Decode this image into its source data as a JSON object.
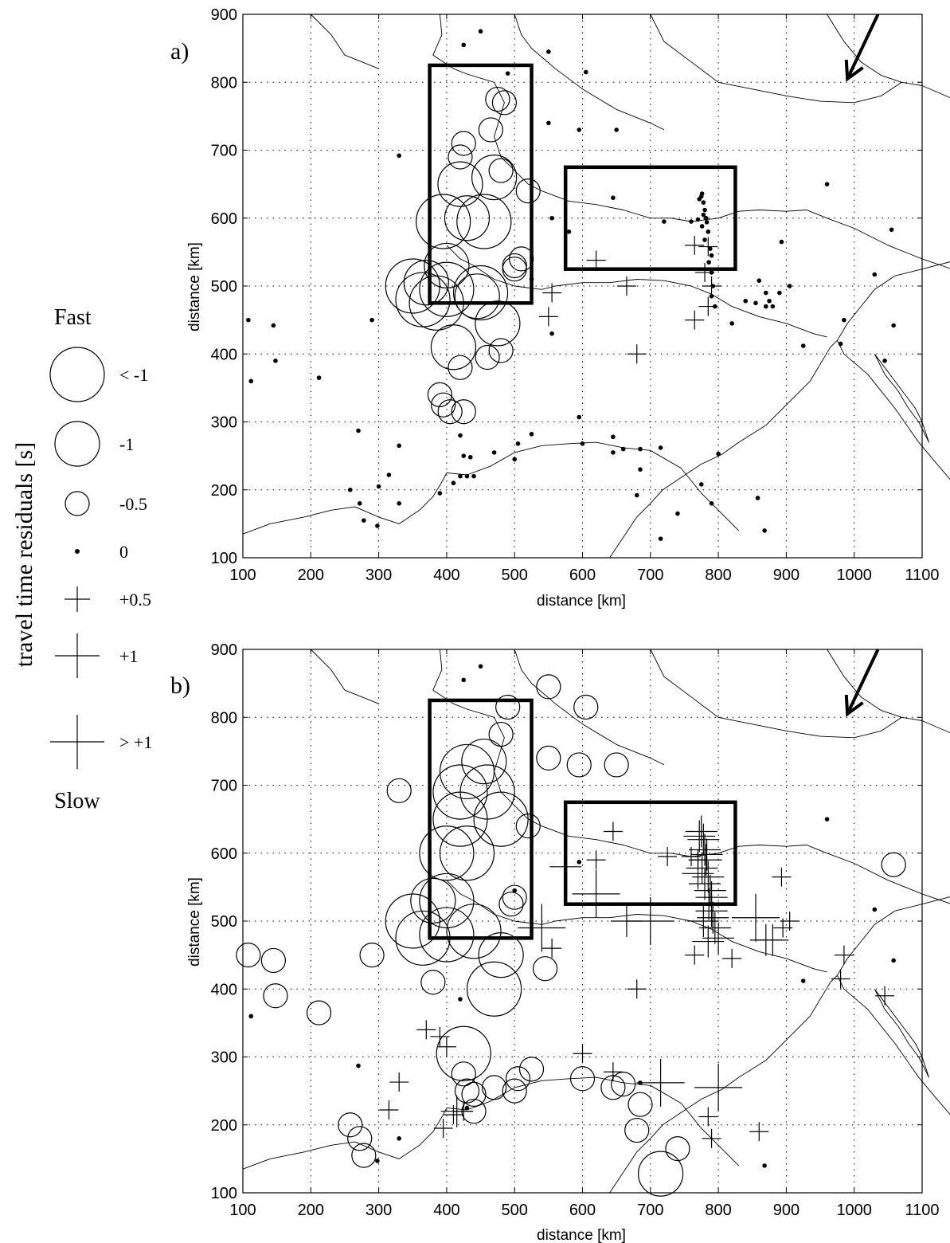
{
  "legend": {
    "title": "travel time residuals [s]",
    "top_label": "Fast",
    "bottom_label": "Slow",
    "items": [
      {
        "symbol": "circle",
        "size": 1.5,
        "label": "< -1"
      },
      {
        "symbol": "circle",
        "size": 1.0,
        "label": "-1"
      },
      {
        "symbol": "circle",
        "size": 0.5,
        "label": "-0.5"
      },
      {
        "symbol": "dot",
        "size": 0,
        "label": "0"
      },
      {
        "symbol": "cross",
        "size": 0.5,
        "label": "+0.5"
      },
      {
        "symbol": "cross",
        "size": 1.0,
        "label": "+1"
      },
      {
        "symbol": "cross",
        "size": 1.5,
        "label": "> +1"
      }
    ]
  },
  "chart_data": [
    {
      "type": "scatter",
      "panel_label": "a)",
      "xlabel": "distance [km]",
      "ylabel": "distance [km]",
      "xlim": [
        100,
        1100
      ],
      "ylim": [
        100,
        900
      ],
      "xticks": [
        "100",
        "200",
        "300",
        "400",
        "500",
        "600",
        "700",
        "800",
        "900",
        "1000",
        "1100"
      ],
      "yticks": [
        "100",
        "200",
        "300",
        "400",
        "500",
        "600",
        "700",
        "800",
        "900"
      ],
      "grid": true,
      "boxes": [
        {
          "x1": 375,
          "x2": 525,
          "y1": 475,
          "y2": 825
        },
        {
          "x1": 575,
          "x2": 825,
          "y1": 525,
          "y2": 675
        }
      ],
      "arrow": {
        "from": [
          1035,
          900
        ],
        "to": [
          990,
          805
        ]
      },
      "points": [
        [
          350,
          500,
          -1.5
        ],
        [
          365,
          480,
          -1.5
        ],
        [
          385,
          475,
          -1.5
        ],
        [
          400,
          495,
          -1.5
        ],
        [
          450,
          490,
          -1.5
        ],
        [
          395,
          595,
          -1.5
        ],
        [
          455,
          595,
          -1.5
        ],
        [
          400,
          530,
          -1
        ],
        [
          430,
          600,
          -1
        ],
        [
          470,
          660,
          -1
        ],
        [
          420,
          650,
          -1
        ],
        [
          475,
          445,
          -1
        ],
        [
          445,
          485,
          -1
        ],
        [
          370,
          505,
          -1
        ],
        [
          410,
          410,
          -1
        ],
        [
          420,
          690,
          -0.5
        ],
        [
          425,
          710,
          -0.5
        ],
        [
          480,
          670,
          -0.5
        ],
        [
          465,
          730,
          -0.5
        ],
        [
          475,
          775,
          -0.5
        ],
        [
          485,
          770,
          -0.5
        ],
        [
          500,
          530,
          -0.5
        ],
        [
          480,
          405,
          -0.5
        ],
        [
          460,
          395,
          -0.5
        ],
        [
          420,
          380,
          -0.5
        ],
        [
          390,
          340,
          -0.5
        ],
        [
          395,
          325,
          -0.5
        ],
        [
          405,
          315,
          -0.5
        ],
        [
          425,
          315,
          -0.5
        ],
        [
          520,
          640,
          -0.5
        ],
        [
          510,
          540,
          -0.5
        ],
        [
          500,
          525,
          -0.5
        ],
        [
          425,
          855,
          0
        ],
        [
          450,
          875,
          0
        ],
        [
          490,
          813,
          0
        ],
        [
          550,
          845,
          0
        ],
        [
          605,
          815,
          0
        ],
        [
          550,
          740,
          0
        ],
        [
          595,
          730,
          0
        ],
        [
          650,
          730,
          0
        ],
        [
          330,
          692,
          0
        ],
        [
          555,
          600,
          0
        ],
        [
          580,
          580,
          0
        ],
        [
          645,
          630,
          0
        ],
        [
          720,
          595,
          0
        ],
        [
          760,
          595,
          0
        ],
        [
          960,
          650,
          0
        ],
        [
          1055,
          583,
          0
        ],
        [
          108,
          450,
          0
        ],
        [
          112,
          360,
          0
        ],
        [
          145,
          442,
          0
        ],
        [
          148,
          390,
          0
        ],
        [
          212,
          365,
          0
        ],
        [
          290,
          450,
          0
        ],
        [
          270,
          287,
          0
        ],
        [
          330,
          265,
          0
        ],
        [
          315,
          222,
          0
        ],
        [
          300,
          205,
          0
        ],
        [
          258,
          200,
          0
        ],
        [
          272,
          180,
          0
        ],
        [
          278,
          155,
          0
        ],
        [
          298,
          147,
          0
        ],
        [
          330,
          180,
          0
        ],
        [
          390,
          195,
          0
        ],
        [
          410,
          210,
          0
        ],
        [
          420,
          220,
          0
        ],
        [
          430,
          220,
          0
        ],
        [
          440,
          220,
          0
        ],
        [
          425,
          250,
          0
        ],
        [
          435,
          248,
          0
        ],
        [
          420,
          280,
          0
        ],
        [
          470,
          255,
          0
        ],
        [
          500,
          245,
          0
        ],
        [
          505,
          268,
          0
        ],
        [
          525,
          282,
          0
        ],
        [
          600,
          268,
          0
        ],
        [
          645,
          278,
          0
        ],
        [
          645,
          255,
          0
        ],
        [
          660,
          260,
          0
        ],
        [
          685,
          260,
          0
        ],
        [
          685,
          230,
          0
        ],
        [
          680,
          192,
          0
        ],
        [
          715,
          262,
          0
        ],
        [
          715,
          128,
          0
        ],
        [
          740,
          165,
          0
        ],
        [
          775,
          208,
          0
        ],
        [
          790,
          180,
          0
        ],
        [
          800,
          253,
          0
        ],
        [
          858,
          188,
          0
        ],
        [
          868,
          140,
          0
        ],
        [
          925,
          412,
          0
        ],
        [
          980,
          415,
          0
        ],
        [
          985,
          450,
          0
        ],
        [
          1030,
          517,
          0
        ],
        [
          1045,
          390,
          0
        ],
        [
          1058,
          442,
          0
        ],
        [
          555,
          430,
          0
        ],
        [
          525,
          510,
          0
        ],
        [
          595,
          307,
          0
        ],
        [
          840,
          478,
          0
        ],
        [
          855,
          475,
          0
        ],
        [
          870,
          490,
          0
        ],
        [
          880,
          470,
          0
        ],
        [
          875,
          478,
          0
        ],
        [
          890,
          490,
          0
        ],
        [
          905,
          500,
          0
        ],
        [
          893,
          565,
          0
        ],
        [
          795,
          470,
          0
        ],
        [
          820,
          445,
          0
        ],
        [
          860,
          508,
          0
        ],
        [
          870,
          470,
          0
        ],
        [
          775,
          632,
          0
        ],
        [
          778,
          623,
          0
        ],
        [
          780,
          612,
          0
        ],
        [
          782,
          600,
          0
        ],
        [
          776,
          588,
          0
        ],
        [
          785,
          580,
          0
        ],
        [
          780,
          568,
          0
        ],
        [
          788,
          555,
          0
        ],
        [
          790,
          545,
          0
        ],
        [
          786,
          535,
          0
        ],
        [
          790,
          520,
          0
        ],
        [
          792,
          500,
          0
        ],
        [
          790,
          485,
          0
        ],
        [
          772,
          628,
          0
        ],
        [
          776,
          636,
          0
        ],
        [
          778,
          605,
          0
        ],
        [
          783,
          594,
          0
        ],
        [
          770,
          598,
          0
        ],
        [
          555,
          490,
          0.5
        ],
        [
          550,
          455,
          0.5
        ],
        [
          620,
          538,
          0.5
        ],
        [
          665,
          500,
          0.5
        ],
        [
          680,
          400,
          0.5
        ],
        [
          765,
          560,
          0.5
        ],
        [
          785,
          558,
          0.5
        ],
        [
          790,
          500,
          0.5
        ],
        [
          785,
          470,
          0.5
        ],
        [
          765,
          450,
          0.5
        ],
        [
          780,
          520,
          0.5
        ]
      ]
    },
    {
      "type": "scatter",
      "panel_label": "b)",
      "xlabel": "distance [km]",
      "ylabel": "distance [km]",
      "xlim": [
        100,
        1100
      ],
      "ylim": [
        100,
        900
      ],
      "xticks": [
        "100",
        "200",
        "300",
        "400",
        "500",
        "600",
        "700",
        "800",
        "900",
        "1000",
        "1100"
      ],
      "yticks": [
        "100",
        "200",
        "300",
        "400",
        "500",
        "600",
        "700",
        "800",
        "900"
      ],
      "grid": true,
      "boxes": [
        {
          "x1": 375,
          "x2": 525,
          "y1": 475,
          "y2": 825
        },
        {
          "x1": 575,
          "x2": 825,
          "y1": 525,
          "y2": 675
        }
      ],
      "arrow": {
        "from": [
          1035,
          900
        ],
        "to": [
          990,
          805
        ]
      },
      "points": [
        [
          350,
          500,
          -1.5
        ],
        [
          365,
          475,
          -1.5
        ],
        [
          400,
          480,
          -1.5
        ],
        [
          440,
          485,
          -1.5
        ],
        [
          400,
          600,
          -1.5
        ],
        [
          420,
          690,
          -1.5
        ],
        [
          420,
          650,
          -1.5
        ],
        [
          430,
          720,
          -1.5
        ],
        [
          460,
          690,
          -1.5
        ],
        [
          480,
          650,
          -1.5
        ],
        [
          430,
          600,
          -1.5
        ],
        [
          400,
          530,
          -1.5
        ],
        [
          470,
          400,
          -1.5
        ],
        [
          425,
          305,
          -1.5
        ],
        [
          455,
          735,
          -1
        ],
        [
          380,
          530,
          -1
        ],
        [
          480,
          450,
          -1
        ],
        [
          715,
          128,
          -1
        ],
        [
          480,
          775,
          -0.5
        ],
        [
          490,
          815,
          -0.5
        ],
        [
          550,
          845,
          -0.5
        ],
        [
          605,
          815,
          -0.5
        ],
        [
          550,
          740,
          -0.5
        ],
        [
          595,
          730,
          -0.5
        ],
        [
          650,
          730,
          -0.5
        ],
        [
          330,
          692,
          -0.5
        ],
        [
          520,
          640,
          -0.5
        ],
        [
          500,
          535,
          -0.5
        ],
        [
          495,
          525,
          -0.5
        ],
        [
          545,
          430,
          -0.5
        ],
        [
          1058,
          583,
          -0.5
        ],
        [
          108,
          450,
          -0.5
        ],
        [
          145,
          442,
          -0.5
        ],
        [
          148,
          390,
          -0.5
        ],
        [
          212,
          365,
          -0.5
        ],
        [
          290,
          450,
          -0.5
        ],
        [
          380,
          410,
          -0.5
        ],
        [
          258,
          200,
          -0.5
        ],
        [
          272,
          180,
          -0.5
        ],
        [
          278,
          155,
          -0.5
        ],
        [
          425,
          275,
          -0.5
        ],
        [
          430,
          250,
          -0.5
        ],
        [
          440,
          245,
          -0.5
        ],
        [
          440,
          220,
          -0.5
        ],
        [
          470,
          255,
          -0.5
        ],
        [
          500,
          250,
          -0.5
        ],
        [
          505,
          268,
          -0.5
        ],
        [
          525,
          282,
          -0.5
        ],
        [
          600,
          268,
          -0.5
        ],
        [
          645,
          255,
          -0.5
        ],
        [
          660,
          260,
          -0.5
        ],
        [
          685,
          230,
          -0.5
        ],
        [
          680,
          192,
          -0.5
        ],
        [
          740,
          165,
          -0.5
        ],
        [
          425,
          855,
          0
        ],
        [
          450,
          875,
          0
        ],
        [
          595,
          587,
          0
        ],
        [
          960,
          650,
          0
        ],
        [
          1030,
          517,
          0
        ],
        [
          1058,
          442,
          0
        ],
        [
          112,
          360,
          0
        ],
        [
          270,
          287,
          0
        ],
        [
          298,
          147,
          0
        ],
        [
          330,
          180,
          0
        ],
        [
          420,
          385,
          0
        ],
        [
          430,
          225,
          0
        ],
        [
          500,
          545,
          0
        ],
        [
          925,
          412,
          0
        ],
        [
          868,
          140,
          0
        ],
        [
          685,
          262,
          0
        ],
        [
          370,
          340,
          0.5
        ],
        [
          390,
          330,
          0.5
        ],
        [
          400,
          315,
          0.5
        ],
        [
          330,
          263,
          0.5
        ],
        [
          315,
          222,
          0.5
        ],
        [
          395,
          195,
          0.5
        ],
        [
          425,
          220,
          0.5
        ],
        [
          410,
          215,
          0.5
        ],
        [
          555,
          460,
          0.5
        ],
        [
          645,
          632,
          0.5
        ],
        [
          620,
          590,
          0.5
        ],
        [
          725,
          595,
          0.5
        ],
        [
          760,
          595,
          0.5
        ],
        [
          770,
          590,
          0.5
        ],
        [
          680,
          400,
          0.5
        ],
        [
          765,
          450,
          0.5
        ],
        [
          820,
          445,
          0.5
        ],
        [
          860,
          190,
          0.5
        ],
        [
          980,
          415,
          0.5
        ],
        [
          985,
          450,
          0.5
        ],
        [
          1045,
          390,
          0.5
        ],
        [
          893,
          565,
          0.5
        ],
        [
          895,
          490,
          0.5
        ],
        [
          905,
          500,
          0.5
        ],
        [
          645,
          278,
          0.5
        ],
        [
          600,
          305,
          0.5
        ],
        [
          785,
          212,
          0.5
        ],
        [
          790,
          180,
          0.5
        ],
        [
          575,
          580,
          1
        ],
        [
          665,
          500,
          1
        ],
        [
          415,
          220,
          1
        ],
        [
          785,
          470,
          1
        ],
        [
          870,
          472,
          1
        ],
        [
          880,
          472,
          1
        ],
        [
          775,
          632,
          1
        ],
        [
          778,
          620,
          1
        ],
        [
          780,
          605,
          1
        ],
        [
          782,
          590,
          1
        ],
        [
          776,
          578,
          1
        ],
        [
          785,
          565,
          1
        ],
        [
          780,
          555,
          1
        ],
        [
          788,
          545,
          1
        ],
        [
          790,
          535,
          1
        ],
        [
          786,
          525,
          1
        ],
        [
          790,
          515,
          1
        ],
        [
          792,
          505,
          1
        ],
        [
          778,
          500,
          1
        ],
        [
          795,
          490,
          1
        ],
        [
          800,
          475,
          1
        ],
        [
          772,
          625,
          1
        ],
        [
          783,
          598,
          1
        ],
        [
          770,
          570,
          1
        ],
        [
          540,
          490,
          1.5
        ],
        [
          620,
          540,
          1.5
        ],
        [
          700,
          500,
          1.5
        ],
        [
          715,
          262,
          1.5
        ],
        [
          800,
          255,
          1.5
        ],
        [
          855,
          505,
          1.5
        ]
      ]
    }
  ]
}
